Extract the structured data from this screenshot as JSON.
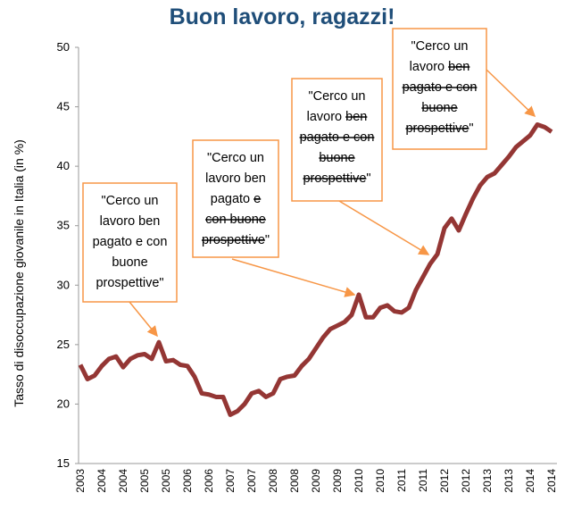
{
  "chart_data": {
    "type": "line",
    "title": "Buon lavoro, ragazzi!",
    "y_label": "Tasso di disoccupazione giovanile in Italia (in %)",
    "categories": [
      "2003",
      null,
      null,
      "2004",
      null,
      null,
      "2004",
      null,
      null,
      "2005",
      null,
      null,
      "2005",
      null,
      null,
      "2006",
      null,
      null,
      "2006",
      null,
      null,
      "2007",
      null,
      null,
      "2007",
      null,
      null,
      "2008",
      null,
      null,
      "2008",
      null,
      null,
      "2009",
      null,
      null,
      "2009",
      null,
      null,
      "2010",
      null,
      null,
      "2010",
      null,
      null,
      "2011",
      null,
      null,
      "2011",
      null,
      null,
      "2012",
      null,
      null,
      "2012",
      null,
      null,
      "2013",
      null,
      null,
      "2013",
      null,
      null,
      "2014",
      null,
      null,
      "2014"
    ],
    "series": [
      {
        "color": "#943634",
        "values": [
          23.3,
          22.1,
          22.4,
          23.2,
          23.8,
          24.0,
          23.1,
          23.8,
          24.1,
          24.2,
          23.8,
          25.2,
          23.6,
          23.7,
          23.3,
          23.2,
          22.3,
          20.9,
          20.8,
          20.6,
          20.6,
          19.1,
          19.4,
          20.0,
          20.9,
          21.1,
          20.6,
          20.9,
          22.1,
          22.3,
          22.4,
          23.2,
          23.8,
          24.7,
          25.6,
          26.3,
          26.6,
          26.9,
          27.5,
          29.2,
          27.3,
          27.3,
          28.1,
          28.3,
          27.8,
          27.7,
          28.1,
          29.6,
          30.7,
          31.8,
          32.6,
          34.8,
          35.6,
          34.6,
          36.0,
          37.3,
          38.4,
          39.1,
          39.4,
          40.1,
          40.8,
          41.6,
          42.1,
          42.6,
          43.5,
          43.3,
          42.9
        ]
      }
    ],
    "ylim": [
      15,
      50
    ],
    "yticks": [
      15,
      20,
      25,
      30,
      35,
      40,
      45,
      50
    ],
    "grid": false,
    "annotations": [
      {
        "lines": [
          [
            {
              "text": "\"Cerco un",
              "strike": false
            }
          ],
          [
            {
              "text": "lavoro ben",
              "strike": false
            }
          ],
          [
            {
              "text": "pagato e con",
              "strike": false
            }
          ],
          [
            {
              "text": "buone",
              "strike": false
            }
          ],
          [
            {
              "text": "prospettive\"",
              "strike": false
            }
          ]
        ]
      },
      {
        "lines": [
          [
            {
              "text": "\"Cerco un",
              "strike": false
            }
          ],
          [
            {
              "text": "lavoro ben",
              "strike": false
            }
          ],
          [
            {
              "text": "pagato ",
              "strike": false
            },
            {
              "text": "e",
              "strike": true
            }
          ],
          [
            {
              "text": "con buone",
              "strike": true
            }
          ],
          [
            {
              "text": "prospettive",
              "strike": true
            },
            {
              "text": "\"",
              "strike": false
            }
          ]
        ]
      },
      {
        "lines": [
          [
            {
              "text": "\"Cerco un",
              "strike": false
            }
          ],
          [
            {
              "text": "lavoro ",
              "strike": false
            },
            {
              "text": "ben",
              "strike": true
            }
          ],
          [
            {
              "text": "pagato e con",
              "strike": true
            }
          ],
          [
            {
              "text": "buone",
              "strike": true
            }
          ],
          [
            {
              "text": "prospettive",
              "strike": true
            },
            {
              "text": "\"",
              "strike": false
            }
          ]
        ]
      },
      {
        "lines": [
          [
            {
              "text": "\"Cerco un",
              "strike": false
            }
          ],
          [
            {
              "text": "lavoro ",
              "strike": false
            },
            {
              "text": "ben",
              "strike": true
            }
          ],
          [
            {
              "text": "pagato e con",
              "strike": true
            }
          ],
          [
            {
              "text": "buone",
              "strike": true
            }
          ],
          [
            {
              "text": "prospettive",
              "strike": true
            },
            {
              "text": "\"",
              "strike": false
            }
          ]
        ]
      }
    ]
  }
}
